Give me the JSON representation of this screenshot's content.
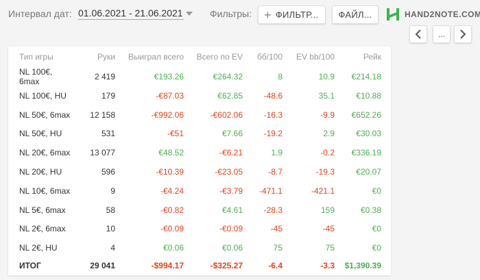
{
  "header": {
    "date_label": "Интервал дат:",
    "date_range": "01.06.2021 - 21.06.2021",
    "filters_label": "Фильтры:",
    "filters_button": "ФИЛЬТР...",
    "file_button": "ФАЙЛ...",
    "logo_text": "HAND2NOTE.COM",
    "more_button": "..."
  },
  "colors": {
    "positive": "#4caf50",
    "negative": "#e8411a",
    "logo": "#3fb34f"
  },
  "table": {
    "columns": [
      "Тип игры",
      "Руки",
      "Выиграл всего",
      "Всего по EV",
      "бб/100",
      "EV bb/100",
      "Рейк"
    ],
    "rows": [
      [
        "NL 100€, 6max",
        "2 419",
        "€193.26",
        "€264.32",
        "8",
        "10.9",
        "€214.18"
      ],
      [
        "NL 100€, HU",
        "179",
        "-€87.03",
        "€62.85",
        "-48.6",
        "35.1",
        "€10.88"
      ],
      [
        "NL 50€, 6max",
        "12 158",
        "-€992.06",
        "-€602.06",
        "-16.3",
        "-9.9",
        "€652.26"
      ],
      [
        "NL 50€, HU",
        "531",
        "-€51",
        "€7.66",
        "-19.2",
        "2.9",
        "€30.03"
      ],
      [
        "NL 20€, 6max",
        "13 077",
        "€48.52",
        "-€6.21",
        "1.9",
        "-0.2",
        "€336.19"
      ],
      [
        "NL 20€, HU",
        "596",
        "-€10.39",
        "-€23.05",
        "-8.7",
        "-19.3",
        "€20.07"
      ],
      [
        "NL 10€, 6max",
        "9",
        "-€4.24",
        "-€3.79",
        "-471.1",
        "-421.1",
        "€0"
      ],
      [
        "NL 5€, 6max",
        "58",
        "-€0.82",
        "€4.61",
        "-28.3",
        "159",
        "€0.38"
      ],
      [
        "NL 2€, 6max",
        "10",
        "-€0.09",
        "-€0.09",
        "-45",
        "-45",
        "€0"
      ],
      [
        "NL 2€, HU",
        "4",
        "€0.06",
        "€0.06",
        "75",
        "75",
        "€0"
      ]
    ],
    "total": [
      "ИТОГ",
      "29 041",
      "-$994.17",
      "-$325.27",
      "-6.4",
      "-3.3",
      "$1,390.39"
    ]
  }
}
